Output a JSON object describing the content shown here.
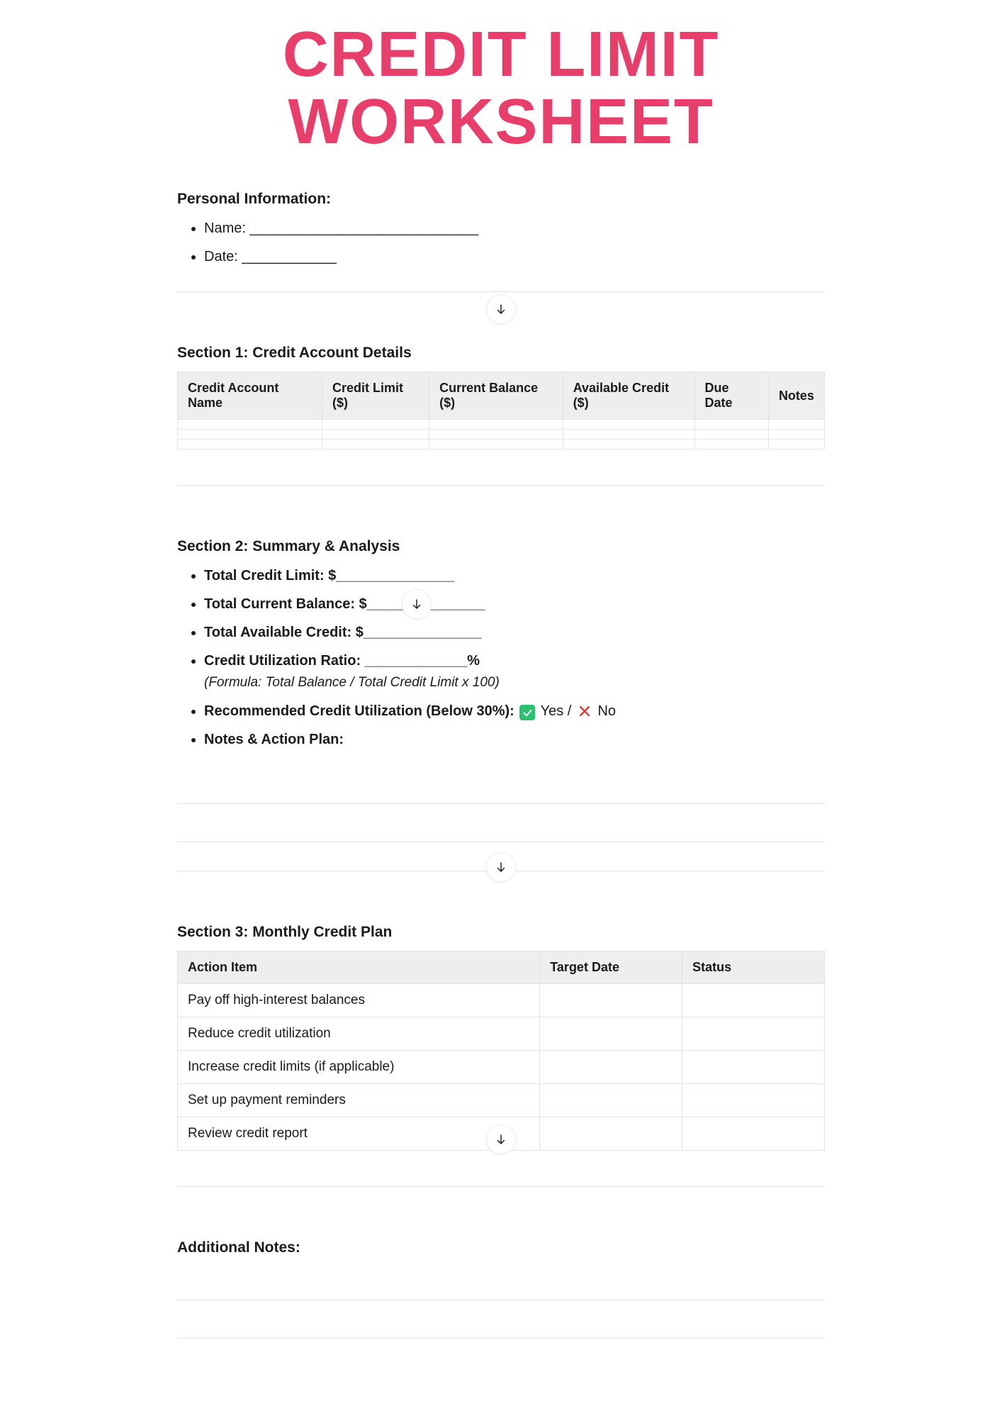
{
  "title": "CREDIT LIMIT WORKSHEET",
  "colors": {
    "title": "#e83e6b",
    "text": "#1a1a1a",
    "table_header_bg": "#eeeeee",
    "border": "#e3e3e3",
    "yes_bg": "#2fbf71",
    "no_stroke": "#e03a3a",
    "background": "#ffffff"
  },
  "personal": {
    "heading": "Personal Information:",
    "name_label": "Name: _____________________________",
    "date_label": "Date: ____________"
  },
  "section1": {
    "heading": "Section 1: Credit Account Details",
    "columns": [
      "Credit Account Name",
      "Credit Limit ($)",
      "Current Balance ($)",
      "Available Credit ($)",
      "Due Date",
      "Notes"
    ],
    "blank_rows": 3
  },
  "section2": {
    "heading": "Section 2: Summary & Analysis",
    "items": {
      "total_limit": "Total Credit Limit: $_______________",
      "total_balance": "Total Current Balance: $_______________",
      "total_available": "Total Available Credit: $_______________",
      "util_ratio": "Credit Utilization Ratio: _____________%",
      "util_formula": "(Formula: Total Balance / Total Credit Limit x 100)",
      "recommended_label": "Recommended Credit Utilization (Below 30%):",
      "yes_text": "Yes /",
      "no_text": "No",
      "notes_label": "Notes & Action Plan:"
    }
  },
  "section3": {
    "heading": "Section 3: Monthly Credit Plan",
    "columns": [
      "Action Item",
      "Target Date",
      "Status"
    ],
    "rows": [
      [
        "Pay off high-interest balances",
        "",
        ""
      ],
      [
        "Reduce credit utilization",
        "",
        ""
      ],
      [
        "Increase credit limits (if applicable)",
        "",
        ""
      ],
      [
        "Set up payment reminders",
        "",
        ""
      ],
      [
        "Review credit report",
        "",
        ""
      ]
    ]
  },
  "additional": {
    "heading": "Additional Notes:"
  }
}
